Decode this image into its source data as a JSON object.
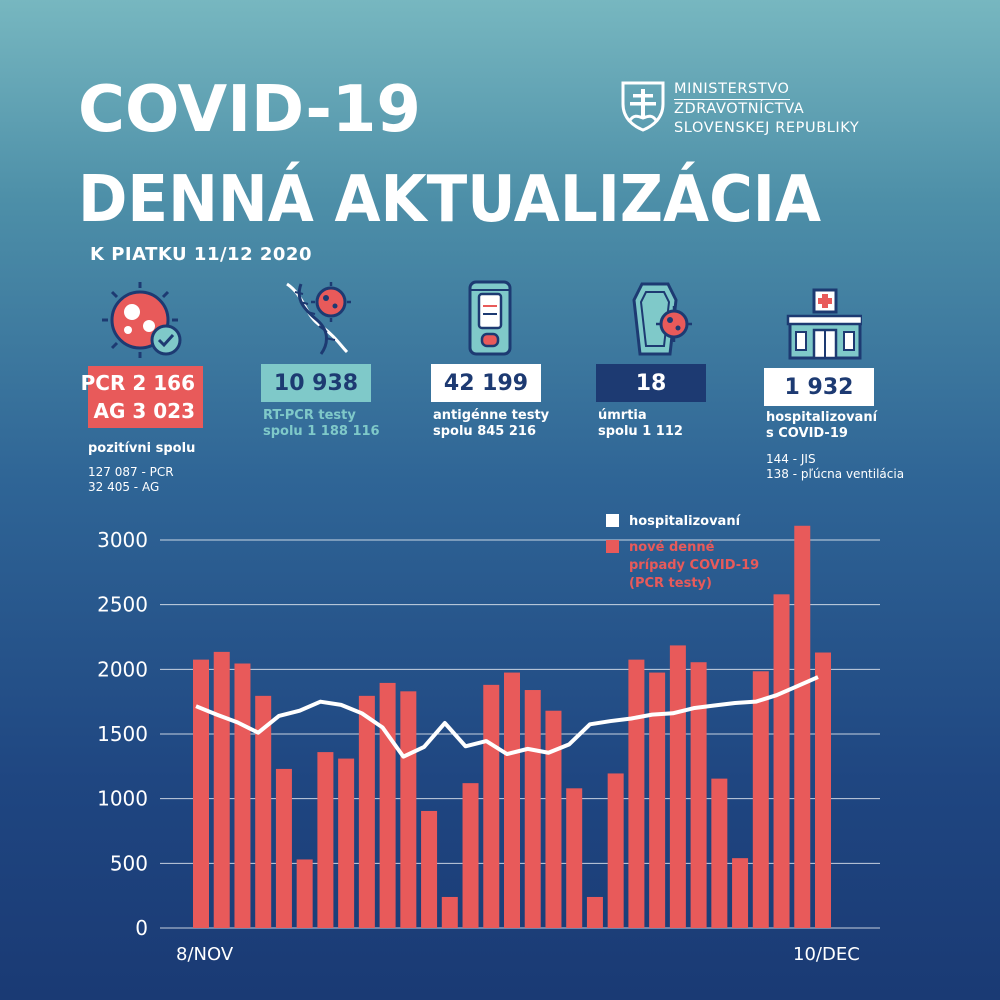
{
  "header": {
    "title_line1": "COVID-19",
    "title_line2": "DENNÁ AKTUALIZÁCIA",
    "subtitle": "K PIATKU 11/12 2020",
    "ministry_lines": [
      "MINISTERSTVO",
      "ZDRAVOTNÍCTVA",
      "SLOVENSKEJ REPUBLIKY"
    ]
  },
  "stats": {
    "positive": {
      "pcr_label": "PCR",
      "pcr_value": "2 166",
      "ag_label": "AG",
      "ag_value": "3 023",
      "label": "pozitívni spolu",
      "detail_pcr": "127 087 - PCR",
      "detail_ag": "32 405 - AG",
      "icon": "virus-check-icon"
    },
    "rtpcr": {
      "value": "10 938",
      "label_line1": "RT-PCR testy",
      "label_line2": "spolu 1 188 116",
      "icon": "dna-virus-icon"
    },
    "antigen": {
      "value": "42 199",
      "label_line1": "antigénne testy",
      "label_line2": "spolu 845 216",
      "icon": "test-cassette-icon"
    },
    "deaths": {
      "value": "18",
      "label_line1": "úmrtia",
      "label_line2": "spolu 1 112",
      "icon": "coffin-virus-icon"
    },
    "hospitalized": {
      "value": "1 932",
      "label_line1": "hospitalizovaní",
      "label_line2": "s COVID-19",
      "detail_jis": "144 - JIS",
      "detail_vent": "138 - pľúcna ventilácia",
      "icon": "hospital-icon"
    }
  },
  "colors": {
    "accent_red": "#e85a5a",
    "teal": "#7fc9c9",
    "navy": "#1d3a72",
    "white": "#ffffff"
  },
  "chart_data": {
    "type": "bar",
    "x_start_label": "8/NOV",
    "x_end_label": "10/DEC",
    "ylim": [
      0,
      3000
    ],
    "yticks": [
      "0",
      "500",
      "1000",
      "1500",
      "2000",
      "2500",
      "3000"
    ],
    "grid": true,
    "legend_position": "top-right",
    "series": [
      {
        "name": "nové denné prípady COVID-19 (PCR testy)",
        "type": "bar",
        "color": "#e85a5a",
        "values": [
          2075,
          2135,
          2045,
          1795,
          1230,
          530,
          1360,
          1310,
          1795,
          1895,
          1830,
          905,
          240,
          1120,
          1880,
          1975,
          1840,
          1680,
          1080,
          240,
          1195,
          2075,
          1975,
          2185,
          2055,
          1155,
          540,
          1985,
          2580,
          3110,
          2130
        ]
      },
      {
        "name": "hospitalizovaní",
        "type": "line",
        "color": "#ffffff",
        "values": [
          1715,
          1650,
          1590,
          1510,
          1640,
          1680,
          1750,
          1725,
          1660,
          1550,
          1325,
          1400,
          1585,
          1405,
          1445,
          1345,
          1385,
          1355,
          1420,
          1575,
          1600,
          1620,
          1650,
          1660,
          1700,
          1720,
          1740,
          1750,
          1800,
          1870,
          1940
        ]
      }
    ]
  }
}
